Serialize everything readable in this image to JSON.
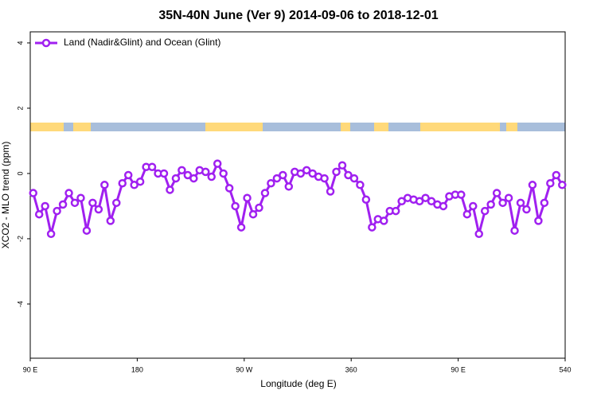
{
  "chart_data": {
    "type": "line",
    "title": "35N-40N June (Ver 9)   2014-09-06 to 2018-12-01",
    "xlabel": "Longitude (deg E)",
    "ylabel": "XCO2 - MLO trend (ppm)",
    "legend": "top-left",
    "xlim": [
      90,
      540
    ],
    "ylim": [
      -5.66,
      4.34
    ],
    "xticks": [
      {
        "value": 90,
        "label": "90 E"
      },
      180,
      {
        "value": 270,
        "label": "90 W"
      },
      360,
      {
        "value": 450,
        "label": "90 E"
      },
      540
    ],
    "yticks": [
      -4,
      -2,
      0,
      2,
      4
    ],
    "x": [
      92.5,
      97.5,
      102.5,
      107.5,
      112.5,
      117.5,
      122.5,
      127.5,
      132.5,
      137.5,
      142.5,
      147.5,
      152.5,
      157.5,
      162.5,
      167.5,
      172.5,
      177.5,
      182.5,
      187.5,
      192.5,
      197.5,
      202.5,
      207.5,
      212.5,
      217.5,
      222.5,
      227.5,
      232.5,
      237.5,
      242.5,
      247.5,
      252.5,
      257.5,
      262.5,
      267.5,
      272.5,
      277.5,
      282.5,
      287.5,
      292.5,
      297.5,
      302.5,
      307.5,
      312.5,
      317.5,
      322.5,
      327.5,
      332.5,
      337.5,
      342.5,
      347.5,
      352.5,
      357.5,
      362.5,
      367.5,
      372.5,
      377.5,
      382.5,
      387.5,
      392.5,
      397.5,
      402.5,
      407.5,
      412.5,
      417.5,
      422.5,
      427.5,
      432.5,
      437.5,
      442.5,
      447.5,
      452.5,
      457.5,
      462.5,
      467.5,
      472.5,
      477.5,
      482.5,
      487.5,
      492.5,
      497.5,
      502.5,
      507.5,
      512.5,
      517.5,
      522.5,
      527.5,
      532.5,
      537.5
    ],
    "series": [
      {
        "name": "Land (Nadir&Glint) and Ocean (Glint)",
        "color": "#a020f0",
        "values": [
          -0.6,
          -1.25,
          -1.0,
          -1.85,
          -1.15,
          -0.95,
          -0.6,
          -0.9,
          -0.75,
          -1.75,
          -0.9,
          -1.1,
          -0.35,
          -1.45,
          -0.9,
          -0.3,
          -0.05,
          -0.35,
          -0.25,
          0.2,
          0.2,
          0.0,
          0.0,
          -0.5,
          -0.15,
          0.1,
          -0.05,
          -0.15,
          0.1,
          0.05,
          -0.1,
          0.3,
          0.0,
          -0.45,
          -1.0,
          -1.65,
          -0.75,
          -1.25,
          -1.05,
          -0.6,
          -0.3,
          -0.15,
          -0.05,
          -0.4,
          0.05,
          0.0,
          0.1,
          0.0,
          -0.1,
          -0.15,
          -0.55,
          0.05,
          0.25,
          -0.05,
          -0.15,
          -0.35,
          -0.8,
          -1.65,
          -1.4,
          -1.45,
          -1.15,
          -1.15,
          -0.85,
          -0.75,
          -0.8,
          -0.85,
          -0.75,
          -0.85,
          -0.95,
          -1.0,
          -0.7,
          -0.65,
          -0.65,
          -1.25,
          -1.0,
          -1.85,
          -1.15,
          -0.95,
          -0.6,
          -0.9,
          -0.75,
          -1.75,
          -0.9,
          -1.1,
          -0.35,
          -1.45,
          -0.9,
          -0.3,
          -0.05,
          -0.35
        ]
      }
    ]
  }
}
